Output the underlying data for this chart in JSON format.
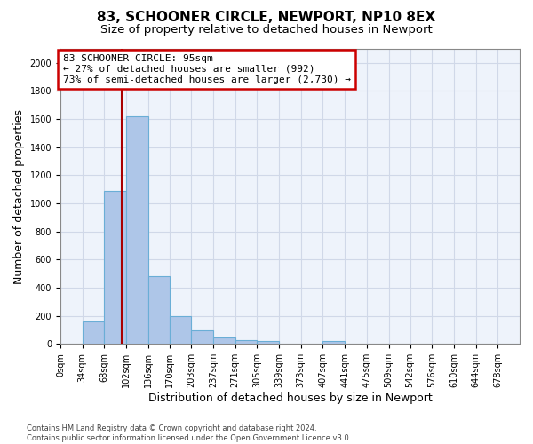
{
  "title1": "83, SCHOONER CIRCLE, NEWPORT, NP10 8EX",
  "title2": "Size of property relative to detached houses in Newport",
  "xlabel": "Distribution of detached houses by size in Newport",
  "ylabel": "Number of detached properties",
  "footnote": "Contains HM Land Registry data © Crown copyright and database right 2024.\nContains public sector information licensed under the Open Government Licence v3.0.",
  "bin_labels": [
    "0sqm",
    "34sqm",
    "68sqm",
    "102sqm",
    "136sqm",
    "170sqm",
    "203sqm",
    "237sqm",
    "271sqm",
    "305sqm",
    "339sqm",
    "373sqm",
    "407sqm",
    "441sqm",
    "475sqm",
    "509sqm",
    "542sqm",
    "576sqm",
    "610sqm",
    "644sqm",
    "678sqm"
  ],
  "bin_edges": [
    0,
    34,
    68,
    102,
    136,
    170,
    203,
    237,
    271,
    305,
    339,
    373,
    407,
    441,
    475,
    509,
    542,
    576,
    610,
    644,
    678
  ],
  "bar_heights": [
    0,
    160,
    1090,
    1620,
    480,
    200,
    100,
    45,
    25,
    20,
    0,
    0,
    20,
    0,
    0,
    0,
    0,
    0,
    0,
    0,
    0
  ],
  "bar_color": "#aec6e8",
  "bar_edge_color": "#6aaed6",
  "grid_color": "#d0d8e8",
  "bg_color": "#eef3fb",
  "property_size": 95,
  "vline_color": "#aa0000",
  "annotation_line1": "83 SCHOONER CIRCLE: 95sqm",
  "annotation_line2": "← 27% of detached houses are smaller (992)",
  "annotation_line3": "73% of semi-detached houses are larger (2,730) →",
  "annotation_box_color": "#cc0000",
  "ylim": [
    0,
    2100
  ],
  "yticks": [
    0,
    200,
    400,
    600,
    800,
    1000,
    1200,
    1400,
    1600,
    1800,
    2000
  ],
  "title1_fontsize": 11,
  "title2_fontsize": 9.5,
  "xlabel_fontsize": 9,
  "ylabel_fontsize": 9,
  "annot_fontsize": 8,
  "tick_fontsize": 7,
  "footnote_fontsize": 6
}
